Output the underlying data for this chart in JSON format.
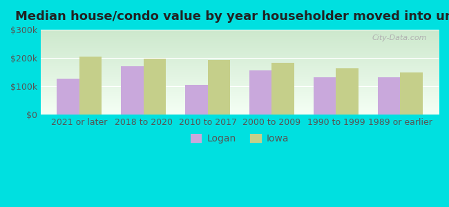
{
  "title": "Median house/condo value by year householder moved into unit",
  "categories": [
    "2021 or later",
    "2018 to 2020",
    "2010 to 2017",
    "2000 to 2009",
    "1990 to 1999",
    "1989 or earlier"
  ],
  "logan_values": [
    127000,
    170000,
    105000,
    157000,
    133000,
    133000
  ],
  "iowa_values": [
    205000,
    197000,
    193000,
    183000,
    163000,
    148000
  ],
  "logan_color": "#c9a8dc",
  "iowa_color": "#c5cf8a",
  "background_outer": "#00e0e0",
  "background_inner_top": "#cce8cc",
  "background_inner_bottom": "#f5fff5",
  "ylim": [
    0,
    300000
  ],
  "ytick_labels": [
    "$0",
    "$100k",
    "$200k",
    "$300k"
  ],
  "ytick_values": [
    0,
    100000,
    200000,
    300000
  ],
  "legend_labels": [
    "Logan",
    "Iowa"
  ],
  "title_fontsize": 13,
  "tick_fontsize": 9,
  "legend_fontsize": 10,
  "bar_width": 0.35,
  "watermark": "City-Data.com"
}
